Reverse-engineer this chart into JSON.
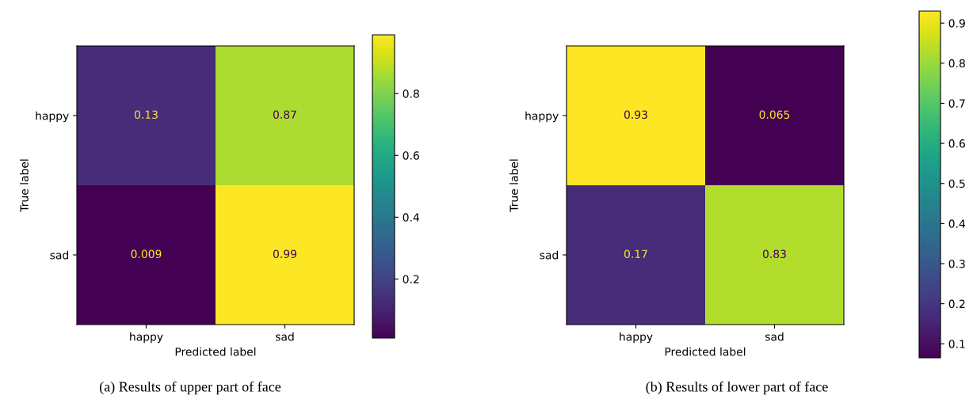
{
  "chart_data": [
    {
      "type": "heatmap",
      "xlabel": "Predicted label",
      "ylabel": "True label",
      "categories": [
        "happy",
        "sad"
      ],
      "y_categories": [
        "happy",
        "sad"
      ],
      "cells": [
        [
          0.13,
          0.87
        ],
        [
          0.009,
          0.99
        ]
      ],
      "data_labels": true,
      "clim": [
        0.009,
        0.99
      ],
      "cticks": [
        0.2,
        0.4,
        0.6,
        0.8
      ],
      "annotations": [
        "(a) Results of upper part of face"
      ]
    },
    {
      "type": "heatmap",
      "xlabel": "Predicted label",
      "ylabel": "True label",
      "categories": [
        "happy",
        "sad"
      ],
      "y_categories": [
        "happy",
        "sad"
      ],
      "cells": [
        [
          0.93,
          0.065
        ],
        [
          0.17,
          0.83
        ]
      ],
      "data_labels": true,
      "clim": [
        0.065,
        0.93
      ],
      "cticks": [
        0.1,
        0.2,
        0.3,
        0.4,
        0.5,
        0.6,
        0.7,
        0.8,
        0.9
      ],
      "annotations": [
        "(b) Results of lower part of face"
      ]
    }
  ]
}
